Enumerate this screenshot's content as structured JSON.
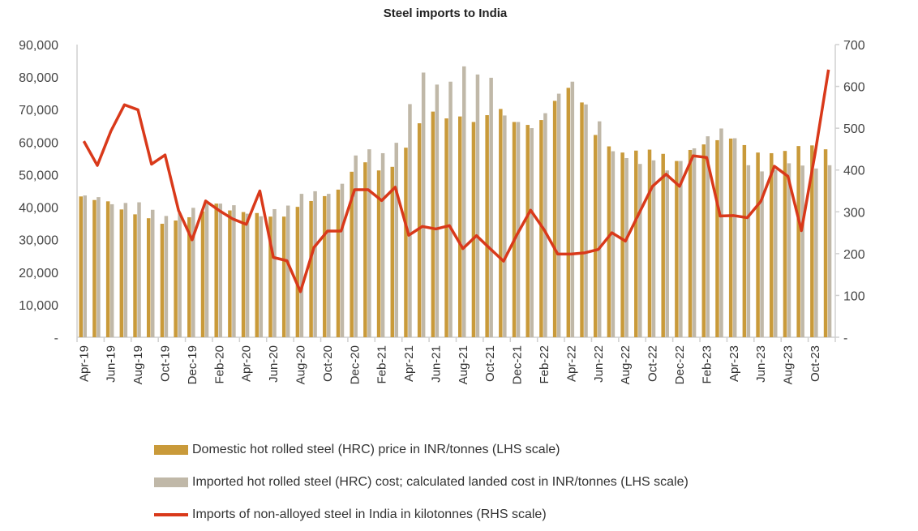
{
  "chart_data": {
    "type": "bar+line",
    "title": "Steel imports to India",
    "categories": [
      "Apr-19",
      "May-19",
      "Jun-19",
      "Jul-19",
      "Aug-19",
      "Sep-19",
      "Oct-19",
      "Nov-19",
      "Dec-19",
      "Jan-20",
      "Feb-20",
      "Mar-20",
      "Apr-20",
      "May-20",
      "Jun-20",
      "Jul-20",
      "Aug-20",
      "Sep-20",
      "Oct-20",
      "Nov-20",
      "Dec-20",
      "Jan-21",
      "Feb-21",
      "Mar-21",
      "Apr-21",
      "May-21",
      "Jun-21",
      "Jul-21",
      "Aug-21",
      "Sep-21",
      "Oct-21",
      "Nov-21",
      "Dec-21",
      "Jan-22",
      "Feb-22",
      "Mar-22",
      "Apr-22",
      "May-22",
      "Jun-22",
      "Jul-22",
      "Aug-22",
      "Sep-22",
      "Oct-22",
      "Nov-22",
      "Dec-22",
      "Jan-23",
      "Feb-23",
      "Mar-23",
      "Apr-23",
      "May-23",
      "Jun-23",
      "Jul-23",
      "Aug-23",
      "Sep-23",
      "Oct-23",
      "Nov-23"
    ],
    "x_tick_labels": [
      "Apr-19",
      "Jun-19",
      "Aug-19",
      "Oct-19",
      "Dec-19",
      "Feb-20",
      "Apr-20",
      "Jun-20",
      "Aug-20",
      "Oct-20",
      "Dec-20",
      "Feb-21",
      "Apr-21",
      "Jun-21",
      "Aug-21",
      "Oct-21",
      "Dec-21",
      "Feb-22",
      "Apr-22",
      "Jun-22",
      "Aug-22",
      "Oct-22",
      "Dec-22",
      "Feb-23",
      "Apr-23",
      "Jun-23",
      "Aug-23",
      "Oct-23"
    ],
    "y_left": {
      "range": [
        0,
        90000
      ],
      "ticks": [
        "-",
        "10,000",
        "20,000",
        "30,000",
        "40,000",
        "50,000",
        "60,000",
        "70,000",
        "80,000",
        "90,000"
      ]
    },
    "y_right": {
      "range": [
        0,
        700
      ],
      "ticks": [
        "-",
        "100",
        "200",
        "300",
        "400",
        "500",
        "600",
        "700"
      ]
    },
    "grid": false,
    "legend_position": "bottom",
    "series": [
      {
        "name": "Domestic hot rolled steel (HRC) price in INR/tonnes (LHS scale)",
        "type": "bar",
        "axis": "left",
        "color": "#C99A3A",
        "values": [
          43300,
          42200,
          41800,
          39300,
          37800,
          36600,
          34900,
          35900,
          36900,
          38700,
          41100,
          39000,
          38500,
          38200,
          37100,
          37100,
          40100,
          41900,
          43400,
          45400,
          50900,
          53800,
          51300,
          52400,
          58300,
          65800,
          69400,
          67300,
          67900,
          66200,
          68300,
          70200,
          66200,
          65300,
          66800,
          72700,
          76700,
          72200,
          62200,
          58700,
          56800,
          57400,
          57700,
          56400,
          54200,
          57600,
          59300,
          60600,
          61100,
          59100,
          56800,
          56600,
          57300,
          58800,
          59000,
          57800
        ]
      },
      {
        "name": "Imported hot rolled steel (HRC) cost; calculated landed cost in INR/tonnes (LHS scale)",
        "type": "bar",
        "axis": "left",
        "color": "#C0B8A8",
        "values": [
          43600,
          43100,
          40900,
          41300,
          41500,
          39200,
          37300,
          38200,
          39800,
          41400,
          41100,
          40600,
          38000,
          37200,
          39400,
          40500,
          44100,
          44900,
          44100,
          47200,
          55900,
          57800,
          56600,
          59800,
          71700,
          81400,
          77700,
          78600,
          83300,
          80800,
          79800,
          68200,
          66200,
          64300,
          68900,
          74900,
          78600,
          71600,
          66400,
          57200,
          55100,
          53300,
          54400,
          51300,
          54200,
          58100,
          61800,
          64200,
          61200,
          52900,
          51000,
          51500,
          53500,
          52800,
          51900,
          52900
        ]
      },
      {
        "name": "Imports of non-alloyed steel in India in kilotonnes (RHS scale)",
        "type": "line",
        "axis": "right",
        "color": "#D9391A",
        "values": [
          469,
          411,
          493,
          556,
          544,
          414,
          436,
          303,
          233,
          326,
          303,
          283,
          270,
          350,
          191,
          183,
          109,
          215,
          254,
          254,
          353,
          353,
          327,
          359,
          244,
          265,
          259,
          267,
          212,
          243,
          212,
          182,
          246,
          304,
          257,
          199,
          199,
          202,
          210,
          250,
          230,
          296,
          361,
          390,
          361,
          434,
          430,
          290,
          291,
          286,
          325,
          409,
          385,
          255,
          438,
          640
        ]
      }
    ]
  }
}
